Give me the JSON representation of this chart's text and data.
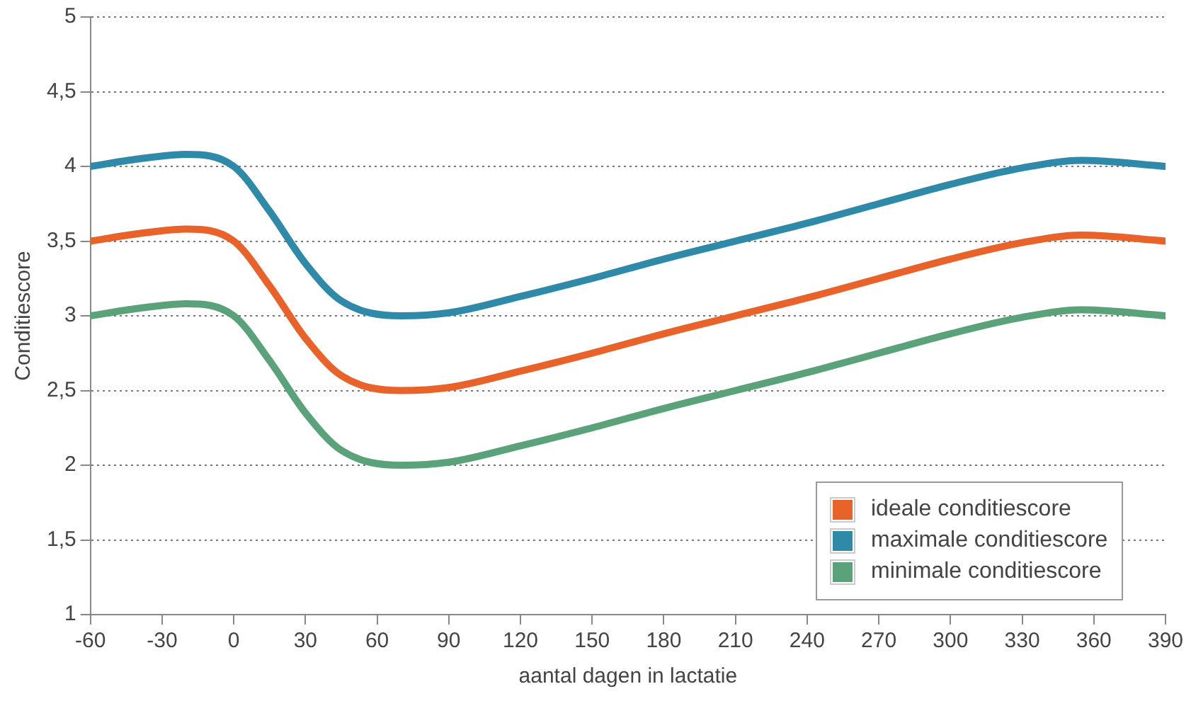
{
  "chart_data": {
    "type": "line",
    "xlabel": "aantal dagen in lactatie",
    "ylabel": "Conditiescore",
    "xlim": [
      -60,
      390
    ],
    "xticks": [
      -60,
      -30,
      0,
      30,
      60,
      90,
      120,
      150,
      180,
      210,
      240,
      270,
      300,
      330,
      360,
      390
    ],
    "ylim": [
      1,
      5
    ],
    "yticks": [
      1,
      {
        "value": 1.5,
        "label": "1,5"
      },
      2,
      {
        "value": 2.5,
        "label": "2,5"
      },
      3,
      {
        "value": 3.5,
        "label": "3,5"
      },
      4,
      {
        "value": 4.5,
        "label": "4,5"
      },
      5
    ],
    "grid": "y",
    "legend": "bottom right",
    "marker": "none",
    "line_style": "solid",
    "x": [
      -60,
      -40,
      -20,
      0,
      15,
      30,
      45,
      70,
      90,
      120,
      150,
      180,
      210,
      240,
      270,
      300,
      330,
      355,
      390
    ],
    "series": [
      {
        "name": "ideale conditiescore",
        "color": "#e8622a",
        "values": [
          3.5,
          3.55,
          3.58,
          3.5,
          3.2,
          2.85,
          2.6,
          2.5,
          2.52,
          2.63,
          2.75,
          2.88,
          3.0,
          3.12,
          3.25,
          3.38,
          3.49,
          3.54,
          3.5
        ]
      },
      {
        "name": "maximale conditiescore",
        "color": "#2e8aa8",
        "values": [
          4.0,
          4.05,
          4.08,
          4.0,
          3.7,
          3.35,
          3.1,
          3.0,
          3.02,
          3.13,
          3.25,
          3.38,
          3.5,
          3.62,
          3.75,
          3.88,
          3.99,
          4.04,
          4.0
        ]
      },
      {
        "name": "minimale conditiescore",
        "color": "#5aa27a",
        "values": [
          3.0,
          3.05,
          3.08,
          3.0,
          2.7,
          2.35,
          2.1,
          2.0,
          2.02,
          2.13,
          2.25,
          2.38,
          2.5,
          2.62,
          2.75,
          2.88,
          2.99,
          3.04,
          3.0
        ]
      }
    ]
  }
}
